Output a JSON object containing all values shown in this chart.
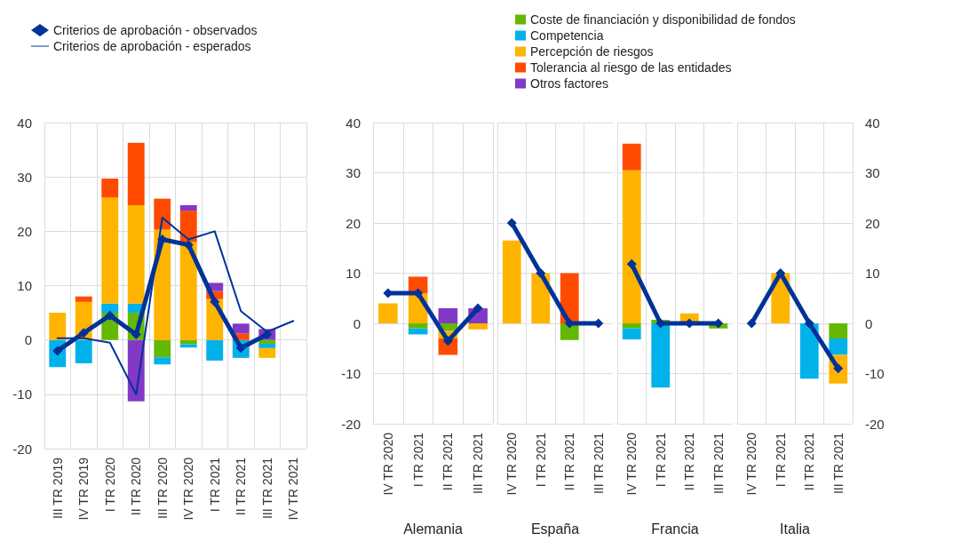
{
  "chart_data": [
    {
      "type": "bar",
      "stacked": true,
      "grid": true,
      "legend": "top",
      "categories": [
        "III TR 2019",
        "IV TR 2019",
        "I TR 2020",
        "II TR 2020",
        "III TR 2020",
        "IV TR 2020",
        "I TR 2021",
        "II TR 2021",
        "III TR 2021",
        "IV TR 2021"
      ],
      "ylim": [
        -20,
        40
      ],
      "yticks": [
        -20,
        -10,
        0,
        10,
        20,
        30,
        40
      ],
      "series": [
        {
          "color": "#65b800",
          "values": [
            null,
            null,
            5,
            5,
            -3.2,
            -0.8,
            null,
            null,
            -0.7,
            null
          ]
        },
        {
          "color": "#00b1ea",
          "values": [
            -5,
            -4.3,
            1.7,
            1.7,
            -1.3,
            -0.6,
            -3.8,
            -3.3,
            -0.8,
            null
          ]
        },
        {
          "color": "#ffb400",
          "values": [
            5,
            7,
            19.5,
            18.1,
            20.3,
            18,
            7.5,
            null,
            -1.8,
            null
          ]
        },
        {
          "color": "#ff4b00",
          "values": [
            null,
            1,
            3.5,
            11.5,
            5.7,
            5.8,
            1.5,
            1.2,
            null,
            null
          ]
        },
        {
          "color": "#8139c6",
          "values": [
            null,
            null,
            null,
            -11.3,
            null,
            1,
            1.5,
            1.8,
            2,
            null
          ]
        },
        {
          "type": "line",
          "name": "Criterios de aprobación - observados",
          "color": "#003299",
          "marker": "diamond",
          "values": [
            -2,
            1.3,
            4.5,
            1,
            18.5,
            17.5,
            7,
            -1.5,
            1,
            null
          ]
        },
        {
          "type": "line",
          "name": "Criterios de aprobación - esperados",
          "color": "#003299",
          "marker": "none",
          "values": [
            0.3,
            0.3,
            -0.5,
            -10,
            22.5,
            18.5,
            20,
            5.3,
            1.5,
            3.5
          ]
        }
      ]
    },
    {
      "type": "bar",
      "stacked": true,
      "grid": true,
      "legend": "top right",
      "xlabel": "Alemania",
      "categories": [
        "IV TR 2020",
        "I TR 2021",
        "II TR 2021",
        "III TR 2021"
      ],
      "ylim": [
        -20,
        40
      ],
      "yticks": [
        -20,
        -10,
        0,
        10,
        20,
        30,
        40
      ],
      "series": [
        {
          "name": "Coste de financiación y disponibilidad de fondos",
          "color": "#65b800",
          "values": [
            null,
            -1,
            -1.5,
            null
          ]
        },
        {
          "name": "Competencia",
          "color": "#00b1ea",
          "values": [
            null,
            -1.2,
            null,
            null
          ]
        },
        {
          "name": "Percepción de riesgos",
          "color": "#ffb400",
          "values": [
            4,
            6,
            -1.5,
            -1.2
          ]
        },
        {
          "name": "Tolerancia al riesgo de las entidades",
          "color": "#ff4b00",
          "values": [
            null,
            3.3,
            -3.3,
            null
          ]
        },
        {
          "name": "Otros factores",
          "color": "#8139c6",
          "values": [
            null,
            null,
            3,
            3
          ]
        },
        {
          "type": "line",
          "color": "#003299",
          "marker": "diamond",
          "values": [
            6,
            6,
            -3.5,
            3
          ]
        }
      ]
    },
    {
      "type": "bar",
      "stacked": true,
      "grid": true,
      "tick_labels": "x",
      "xlabel": "España",
      "categories": [
        "IV TR 2020",
        "I TR 2021",
        "II TR 2021",
        "III TR 2021"
      ],
      "ylim": [
        -20,
        40
      ],
      "yticks": [
        -20,
        -10,
        0,
        10,
        20,
        30,
        40
      ],
      "series": [
        {
          "color": "#65b800",
          "values": [
            null,
            null,
            -3.3,
            null
          ]
        },
        {
          "color": "#ffb400",
          "values": [
            16.5,
            10,
            null,
            null
          ]
        },
        {
          "color": "#ff4b00",
          "values": [
            null,
            null,
            10,
            null
          ]
        },
        {
          "type": "line",
          "color": "#003299",
          "marker": "diamond",
          "values": [
            20,
            10,
            0,
            0
          ]
        }
      ]
    },
    {
      "type": "bar",
      "stacked": true,
      "grid": true,
      "tick_labels": "x",
      "xlabel": "Francia",
      "categories": [
        "IV TR 2020",
        "I TR 2021",
        "II TR 2021",
        "III TR 2021"
      ],
      "ylim": [
        -20,
        40
      ],
      "yticks": [
        -20,
        -10,
        0,
        10,
        20,
        30,
        40
      ],
      "series": [
        {
          "color": "#65b800",
          "values": [
            -1,
            0.7,
            null,
            -1
          ]
        },
        {
          "color": "#00b1ea",
          "values": [
            -2.2,
            -12.8,
            null,
            null
          ]
        },
        {
          "color": "#ffb400",
          "values": [
            30.5,
            null,
            2,
            null
          ]
        },
        {
          "color": "#ff4b00",
          "values": [
            5.3,
            null,
            null,
            null
          ]
        },
        {
          "type": "line",
          "color": "#003299",
          "marker": "diamond",
          "values": [
            11.8,
            0,
            0,
            0
          ]
        }
      ]
    },
    {
      "type": "bar",
      "stacked": true,
      "grid": true,
      "xlabel": "Italia",
      "categories": [
        "IV TR 2020",
        "I TR 2021",
        "II TR 2021",
        "III TR 2021"
      ],
      "y2lim": [
        -20,
        40
      ],
      "y2ticks": [
        -20,
        -10,
        0,
        10,
        20,
        30,
        40
      ],
      "series": [
        {
          "axis": "y2",
          "color": "#65b800",
          "values": [
            null,
            null,
            null,
            -3
          ]
        },
        {
          "axis": "y2",
          "color": "#00b1ea",
          "values": [
            null,
            null,
            -11,
            -3.3
          ]
        },
        {
          "axis": "y2",
          "color": "#ffb400",
          "values": [
            null,
            10,
            null,
            -5.7
          ]
        },
        {
          "axis": "y2",
          "type": "line",
          "color": "#003299",
          "marker": "diamond",
          "values": [
            0,
            10,
            0,
            -9
          ]
        }
      ]
    }
  ]
}
